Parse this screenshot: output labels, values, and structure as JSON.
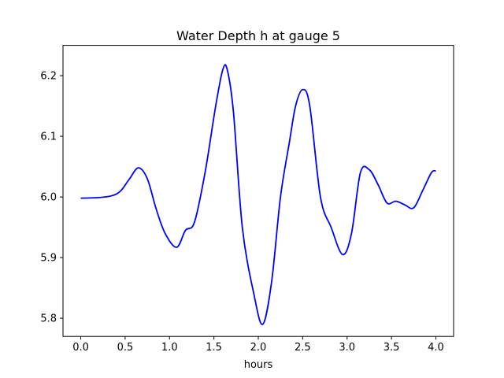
{
  "chart_data": {
    "type": "line",
    "title": "Water Depth h at gauge 5",
    "xlabel": "hours",
    "ylabel": "",
    "xlim": [
      -0.2,
      4.2
    ],
    "ylim": [
      5.77,
      6.25
    ],
    "xticks": [
      0.0,
      0.5,
      1.0,
      1.5,
      2.0,
      2.5,
      3.0,
      3.5,
      4.0
    ],
    "xtick_labels": [
      "0.0",
      "0.5",
      "1.0",
      "1.5",
      "2.0",
      "2.5",
      "3.0",
      "3.5",
      "4.0"
    ],
    "yticks": [
      5.8,
      5.9,
      6.0,
      6.1,
      6.2
    ],
    "ytick_labels": [
      "5.8",
      "5.9",
      "6.0",
      "6.1",
      "6.2"
    ],
    "grid": false,
    "legend": "none",
    "series": [
      {
        "color": "#0000ff",
        "x": [
          0.0,
          0.2,
          0.35,
          0.45,
          0.55,
          0.65,
          0.75,
          0.85,
          0.95,
          1.08,
          1.18,
          1.28,
          1.4,
          1.52,
          1.6,
          1.65,
          1.72,
          1.82,
          1.95,
          2.05,
          2.15,
          2.25,
          2.35,
          2.42,
          2.5,
          2.58,
          2.7,
          2.82,
          2.95,
          3.05,
          3.15,
          3.25,
          3.35,
          3.45,
          3.55,
          3.65,
          3.75,
          3.85,
          3.95,
          4.0
        ],
        "y": [
          5.998,
          5.999,
          6.002,
          6.01,
          6.03,
          6.048,
          6.03,
          5.98,
          5.94,
          5.917,
          5.945,
          5.958,
          6.04,
          6.15,
          6.21,
          6.21,
          6.14,
          5.95,
          5.84,
          5.79,
          5.86,
          6.0,
          6.09,
          6.15,
          6.177,
          6.15,
          6.0,
          5.95,
          5.905,
          5.94,
          6.04,
          6.045,
          6.02,
          5.99,
          5.993,
          5.987,
          5.982,
          6.01,
          6.04,
          6.043
        ]
      }
    ]
  }
}
